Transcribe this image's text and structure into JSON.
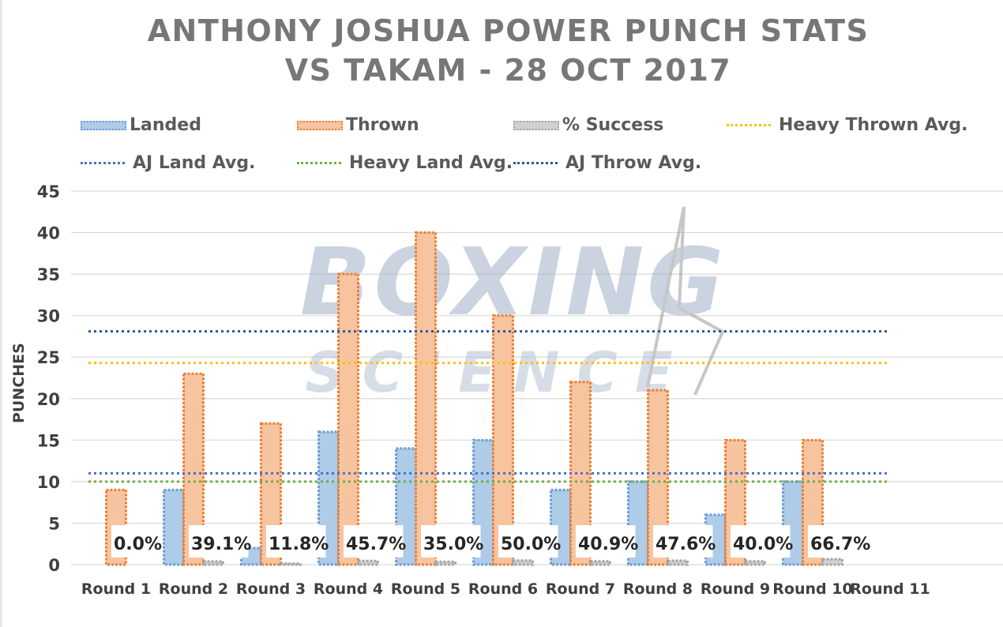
{
  "chart_data": {
    "type": "bar",
    "title": "ANTHONY JOSHUA POWER PUNCH STATS",
    "subtitle": "VS TAKAM - 28 OCT 2017",
    "ylabel": "PUNCHES",
    "xlabel": "",
    "ylim": [
      0,
      45
    ],
    "yticks": [
      "0",
      "5",
      "10",
      "15",
      "20",
      "25",
      "30",
      "35",
      "40",
      "45"
    ],
    "grid": true,
    "categories": [
      "Round 1",
      "Round 2",
      "Round 3",
      "Round 4",
      "Round 5",
      "Round 6",
      "Round 7",
      "Round 8",
      "Round 9",
      "Round 10",
      "Round 11"
    ],
    "series": [
      {
        "name": "Landed",
        "color": "#aecbe8",
        "border": "#6a9ed3",
        "values": [
          0,
          9,
          2,
          16,
          14,
          15,
          9,
          10,
          6,
          10,
          null
        ]
      },
      {
        "name": "Thrown",
        "color": "#f7c4a0",
        "border": "#ed7d31",
        "values": [
          9,
          23,
          17,
          35,
          40,
          30,
          22,
          21,
          15,
          15,
          null
        ]
      },
      {
        "name": "% Success",
        "color": "#d0d0d0",
        "border": "#a5a5a5",
        "values": [
          0,
          0.391,
          0.118,
          0.457,
          0.35,
          0.5,
          0.409,
          0.476,
          0.4,
          0.667,
          null
        ]
      }
    ],
    "data_labels": [
      "0.0%",
      "39.1%",
      "11.8%",
      "45.7%",
      "35.0%",
      "50.0%",
      "40.9%",
      "47.6%",
      "40.0%",
      "66.7%"
    ],
    "reference_lines": [
      {
        "name": "Heavy Thrown Avg.",
        "color": "#ffc000",
        "value": 24.3
      },
      {
        "name": "AJ Land Avg.",
        "color": "#4472c4",
        "value": 11
      },
      {
        "name": "Heavy Land Avg.",
        "color": "#70ad47",
        "value": 10
      },
      {
        "name": "AJ Throw Avg.",
        "color": "#2f5597",
        "value": 28.1
      }
    ],
    "legend": {
      "placement": "top",
      "items": [
        "Landed",
        "Thrown",
        "% Success",
        "Heavy Thrown Avg.",
        "AJ Land Avg.",
        "Heavy Land Avg.",
        "AJ Throw Avg."
      ]
    }
  },
  "watermark": {
    "line1": "BOXING",
    "line2": "SCIENCE"
  }
}
